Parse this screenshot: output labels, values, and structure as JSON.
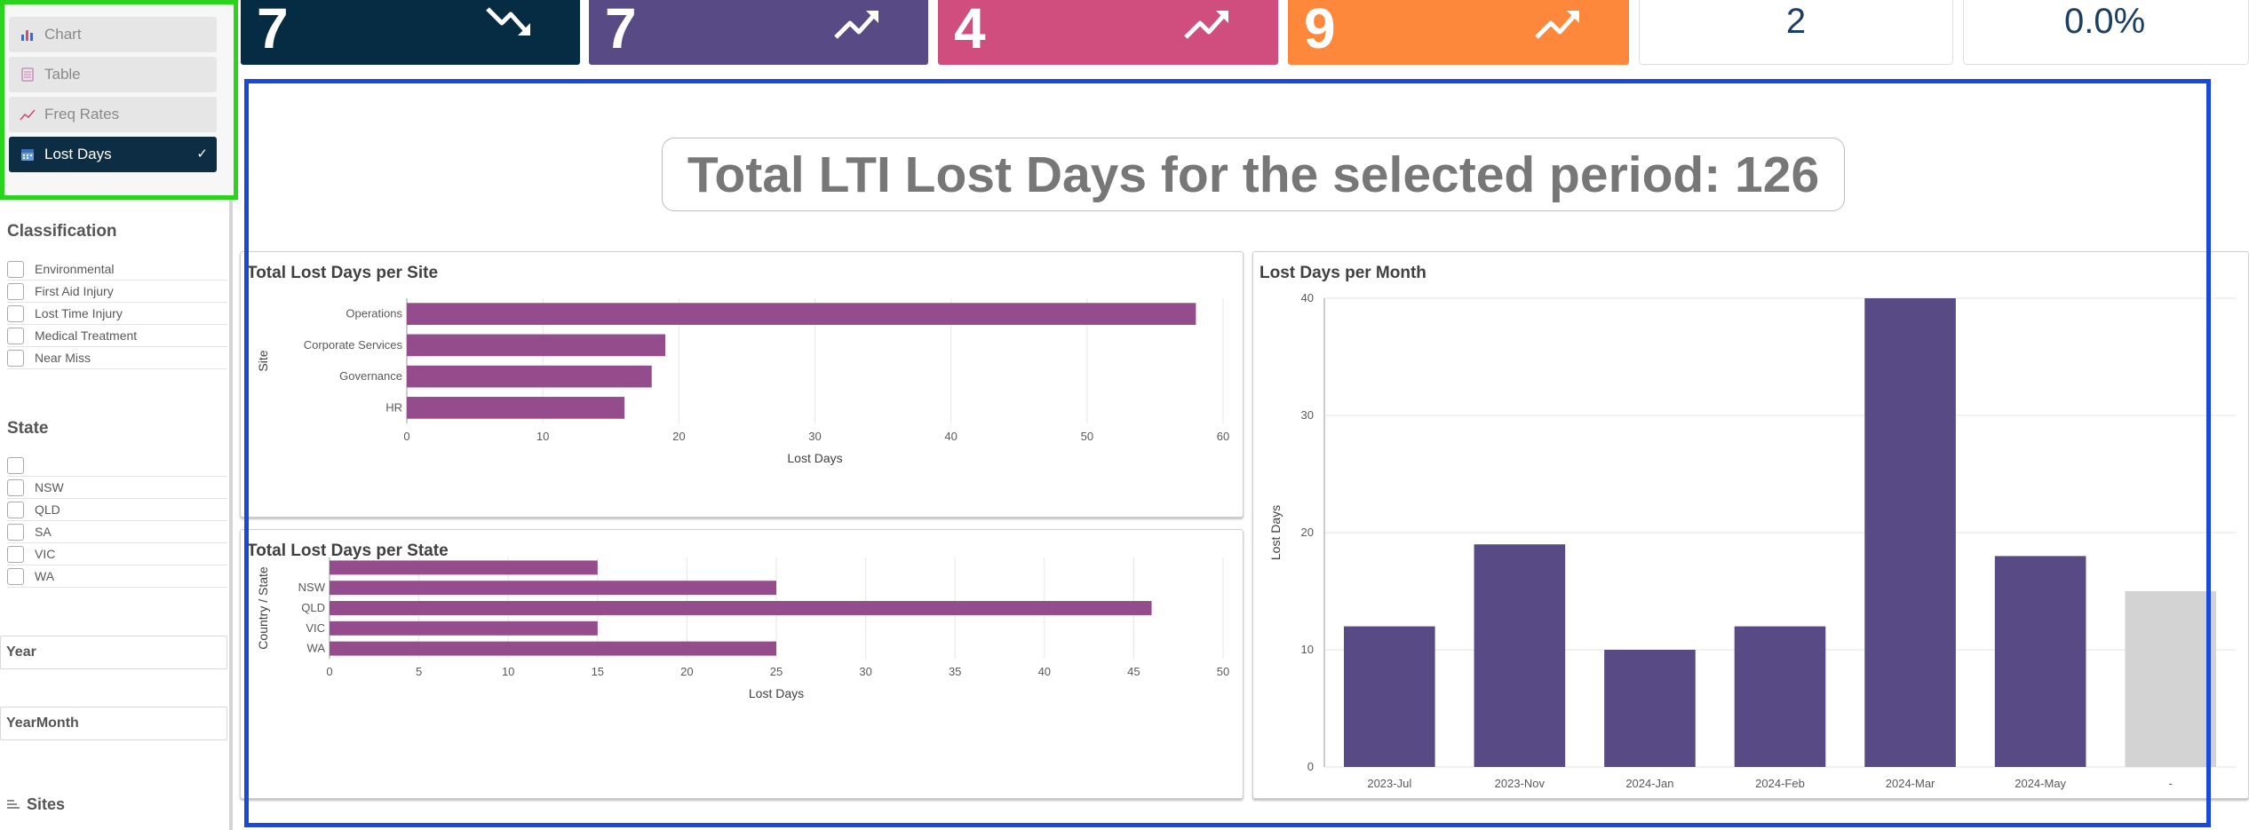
{
  "sidebar": {
    "buttons": [
      {
        "label": "Chart",
        "icon": "bar-chart-icon"
      },
      {
        "label": "Table",
        "icon": "table-icon"
      },
      {
        "label": "Freq Rates",
        "icon": "line-chart-icon"
      },
      {
        "label": "Lost Days",
        "icon": "calendar-icon",
        "selected": true
      }
    ],
    "classification": {
      "title": "Classification",
      "items": [
        "Environmental",
        "First Aid Injury",
        "Lost Time Injury",
        "Medical Treatment",
        "Near Miss"
      ]
    },
    "state": {
      "title": "State",
      "items": [
        "",
        "NSW",
        "QLD",
        "SA",
        "VIC",
        "WA"
      ]
    },
    "year_label": "Year",
    "yearmonth_label": "YearMonth",
    "sites_label": "Sites"
  },
  "kpis": [
    {
      "value": "7",
      "color": "#052c42",
      "trend": "down"
    },
    {
      "value": "7",
      "color": "#584a84",
      "trend": "up"
    },
    {
      "value": "4",
      "color": "#d04e7e",
      "trend": "up"
    },
    {
      "value": "9",
      "color": "#fd883b",
      "trend": "up"
    }
  ],
  "kpi_white": [
    {
      "value": "2"
    },
    {
      "value": "0.0%"
    }
  ],
  "total_banner": "Total LTI Lost Days for the selected period: 126",
  "chart_data": [
    {
      "type": "bar",
      "orientation": "horizontal",
      "title": "Total Lost Days per Site",
      "categories": [
        "Operations",
        "Corporate Services",
        "Governance",
        "HR"
      ],
      "values": [
        58,
        19,
        18,
        16
      ],
      "xlabel": "Lost Days",
      "ylabel": "Site",
      "xlim": [
        0,
        60
      ],
      "xticks": [
        0,
        10,
        20,
        30,
        40,
        50,
        60
      ],
      "color": "#944c8c"
    },
    {
      "type": "bar",
      "orientation": "horizontal",
      "title": "Total Lost Days per State",
      "categories": [
        "",
        "NSW",
        "QLD",
        "VIC",
        "WA"
      ],
      "values": [
        15,
        25,
        46,
        15,
        25
      ],
      "xlabel": "Lost Days",
      "ylabel": "Country / State",
      "xlim": [
        0,
        50
      ],
      "xticks": [
        0,
        5,
        10,
        15,
        20,
        25,
        30,
        35,
        40,
        45,
        50
      ],
      "color": "#944c8c"
    },
    {
      "type": "bar",
      "orientation": "vertical",
      "title": "Lost Days per Month",
      "categories": [
        "2023-Jul",
        "2023-Nov",
        "2024-Jan",
        "2024-Feb",
        "2024-Mar",
        "2024-May",
        "-"
      ],
      "values": [
        12,
        19,
        10,
        12,
        40,
        18,
        15
      ],
      "colors": [
        "#584a84",
        "#584a84",
        "#584a84",
        "#584a84",
        "#584a84",
        "#584a84",
        "#d3d3d3"
      ],
      "xlabel": "",
      "ylabel": "Lost Days",
      "ylim": [
        0,
        40
      ],
      "yticks": [
        0,
        10,
        20,
        30,
        40
      ]
    }
  ]
}
